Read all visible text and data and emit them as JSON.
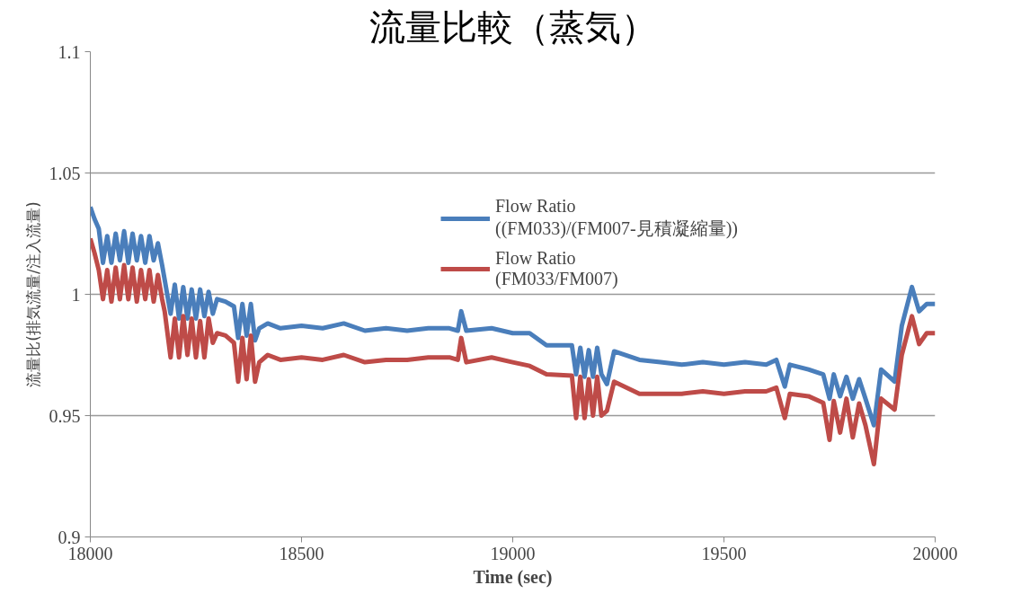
{
  "chart_data": {
    "type": "line",
    "title": "流量比較（蒸気）",
    "xlabel": "Time (sec)",
    "ylabel": "流量比(排気流量/注入流量)",
    "xlim": [
      18000,
      20000
    ],
    "xticks": [
      18000,
      18500,
      19000,
      19500,
      20000
    ],
    "ylim": [
      0.9,
      1.1
    ],
    "yticks": [
      0.9,
      0.95,
      1,
      1.05,
      1.1
    ],
    "grid": "y",
    "legend": "top right",
    "marker": "none",
    "line_style": "solid",
    "x": [
      18000,
      18010,
      18020,
      18030,
      18040,
      18050,
      18060,
      18070,
      18080,
      18090,
      18100,
      18110,
      18120,
      18130,
      18140,
      18150,
      18160,
      18170,
      18176,
      18190,
      18200,
      18210,
      18220,
      18230,
      18240,
      18250,
      18260,
      18270,
      18280,
      18290,
      18300,
      18320,
      18340,
      18350,
      18360,
      18370,
      18380,
      18390,
      18400,
      18420,
      18450,
      18500,
      18550,
      18600,
      18650,
      18700,
      18750,
      18800,
      18850,
      18870,
      18878,
      18890,
      18950,
      19000,
      19040,
      19080,
      19140,
      19150,
      19160,
      19170,
      19180,
      19190,
      19200,
      19210,
      19223,
      19240,
      19300,
      19350,
      19400,
      19450,
      19500,
      19550,
      19600,
      19624,
      19644,
      19656,
      19700,
      19735,
      19750,
      19760,
      19775,
      19790,
      19805,
      19820,
      19835,
      19855,
      19872,
      19904,
      19921,
      19945,
      19962,
      19980,
      20000
    ],
    "series": [
      {
        "name": "Flow Ratio\n((FM033)/(FM007-見積凝縮量))",
        "color": "#4a7ebb",
        "values": [
          1.036,
          1.031,
          1.027,
          1.013,
          1.024,
          1.013,
          1.025,
          1.014,
          1.026,
          1.013,
          1.025,
          1.014,
          1.024,
          1.013,
          1.024,
          1.014,
          1.021,
          1.012,
          1.006,
          0.992,
          1.004,
          0.99,
          1.003,
          0.99,
          1.002,
          0.99,
          1.002,
          0.991,
          1.001,
          0.992,
          0.998,
          0.997,
          0.995,
          0.982,
          0.996,
          0.983,
          0.996,
          0.981,
          0.986,
          0.988,
          0.986,
          0.987,
          0.986,
          0.988,
          0.985,
          0.986,
          0.985,
          0.986,
          0.986,
          0.985,
          0.993,
          0.985,
          0.986,
          0.984,
          0.984,
          0.979,
          0.979,
          0.967,
          0.978,
          0.966,
          0.977,
          0.966,
          0.978,
          0.967,
          0.963,
          0.9765,
          0.973,
          0.972,
          0.971,
          0.972,
          0.971,
          0.972,
          0.971,
          0.973,
          0.962,
          0.971,
          0.969,
          0.967,
          0.957,
          0.967,
          0.958,
          0.966,
          0.957,
          0.965,
          0.957,
          0.946,
          0.969,
          0.964,
          0.987,
          1.003,
          0.993,
          0.996,
          0.996
        ]
      },
      {
        "name": "Flow Ratio\n(FM033/FM007)",
        "color": "#be4b48",
        "values": [
          1.023,
          1.017,
          1.01,
          0.998,
          1.01,
          0.997,
          1.011,
          0.998,
          1.012,
          0.998,
          1.011,
          0.997,
          1.01,
          0.998,
          1.01,
          0.997,
          1.008,
          0.998,
          0.993,
          0.974,
          0.99,
          0.974,
          0.991,
          0.975,
          0.99,
          0.974,
          0.989,
          0.974,
          0.99,
          0.98,
          0.984,
          0.983,
          0.98,
          0.964,
          0.982,
          0.965,
          0.983,
          0.964,
          0.972,
          0.975,
          0.973,
          0.974,
          0.973,
          0.975,
          0.972,
          0.973,
          0.973,
          0.974,
          0.974,
          0.973,
          0.982,
          0.972,
          0.974,
          0.972,
          0.9705,
          0.967,
          0.9665,
          0.949,
          0.966,
          0.949,
          0.965,
          0.95,
          0.966,
          0.95,
          0.952,
          0.964,
          0.959,
          0.959,
          0.959,
          0.96,
          0.959,
          0.96,
          0.96,
          0.9615,
          0.949,
          0.959,
          0.958,
          0.9553,
          0.94,
          0.956,
          0.943,
          0.957,
          0.941,
          0.955,
          0.946,
          0.93,
          0.957,
          0.9525,
          0.975,
          0.991,
          0.9795,
          0.984,
          0.984
        ]
      }
    ]
  }
}
